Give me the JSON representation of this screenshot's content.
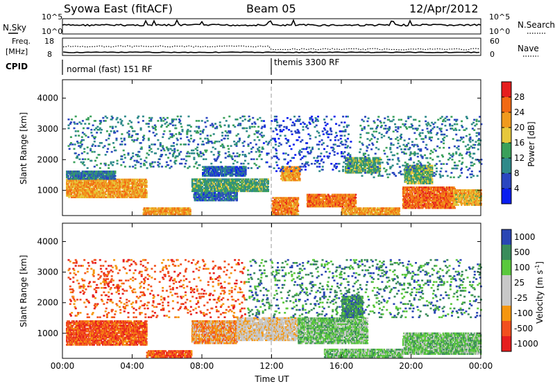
{
  "header": {
    "station": "Syowa East (fitACF)",
    "beam": "Beam 05",
    "date": "12/Apr/2012"
  },
  "noise_panel": {
    "left_label": "N.Sky",
    "right_label": "N.Search",
    "tick_top": "10^5",
    "tick_bottom": "10^0"
  },
  "freq_panel": {
    "left_label": "Freq.",
    "left_unit": "[MHz]",
    "left_tick_top": "18",
    "left_tick_bottom": "8",
    "right_label": "Nave",
    "right_tick_top": "60",
    "right_tick_bottom": "0"
  },
  "cpid_panel": {
    "label": "CPID",
    "segments": [
      {
        "start_hour": 0,
        "text": "normal (fast) 151 RF"
      },
      {
        "start_hour": 12,
        "text": "themis 3300 RF"
      }
    ]
  },
  "colors": {
    "power_scale": [
      "#0a1ef0",
      "#2a46c0",
      "#2f8a8a",
      "#3aa05a",
      "#e6c83c",
      "#f09a1e",
      "#f26a14",
      "#e61e1e"
    ],
    "velocity_scale": [
      "#e61e1e",
      "#f2501e",
      "#f5960f",
      "#c8c8c8",
      "#c8c8c8",
      "#5ac83c",
      "#3a8c5a",
      "#2a46b4"
    ]
  },
  "chart_data": [
    {
      "type": "heatmap",
      "title": "",
      "xlabel": "",
      "ylabel": "Slant Range [km]",
      "xlim": [
        0,
        24
      ],
      "ylim": [
        180,
        4600
      ],
      "yticks": [
        1000,
        2000,
        3000,
        4000
      ],
      "xticks": [
        "00:00",
        "04:00",
        "08:00",
        "12:00",
        "16:00",
        "20:00",
        "00:00"
      ],
      "colorbar": {
        "label": "Power [dB]",
        "range": [
          0,
          32
        ],
        "ticks": [
          "4",
          "8",
          "12",
          "16",
          "20",
          "24",
          "28"
        ]
      },
      "regions": [
        {
          "t0": 0.2,
          "t1": 4.8,
          "r0": 750,
          "r1": 1350,
          "v": 22
        },
        {
          "t0": 0.2,
          "t1": 3.0,
          "r0": 1350,
          "r1": 1600,
          "v": 9
        },
        {
          "t0": 4.6,
          "t1": 7.3,
          "r0": 200,
          "r1": 420,
          "v": 23
        },
        {
          "t0": 7.4,
          "t1": 11.8,
          "r0": 950,
          "r1": 1350,
          "v": 13
        },
        {
          "t0": 7.5,
          "t1": 10.0,
          "r0": 650,
          "r1": 900,
          "v": 8
        },
        {
          "t0": 8.0,
          "t1": 10.5,
          "r0": 1450,
          "r1": 1750,
          "v": 7
        },
        {
          "t0": 12.5,
          "t1": 13.6,
          "r0": 1300,
          "r1": 1750,
          "v": 22
        },
        {
          "t0": 12.0,
          "t1": 13.5,
          "r0": 200,
          "r1": 750,
          "v": 24
        },
        {
          "t0": 14.0,
          "t1": 16.8,
          "r0": 450,
          "r1": 850,
          "v": 25
        },
        {
          "t0": 16.2,
          "t1": 18.2,
          "r0": 1550,
          "r1": 2050,
          "v": 14
        },
        {
          "t0": 16.0,
          "t1": 19.3,
          "r0": 200,
          "r1": 420,
          "v": 22
        },
        {
          "t0": 19.5,
          "t1": 22.5,
          "r0": 400,
          "r1": 1100,
          "v": 26
        },
        {
          "t0": 19.6,
          "t1": 21.2,
          "r0": 1200,
          "r1": 1800,
          "v": 15
        },
        {
          "t0": 22.4,
          "t1": 24.0,
          "r0": 500,
          "r1": 1000,
          "v": 20
        },
        {
          "t0": 0.3,
          "t1": 11.5,
          "r0": 1700,
          "r1": 3400,
          "v": 10,
          "sparse": true
        },
        {
          "t0": 11.5,
          "t1": 16.5,
          "r0": 1600,
          "r1": 3400,
          "v": 6,
          "sparse": true
        },
        {
          "t0": 17.0,
          "t1": 24.0,
          "r0": 1400,
          "r1": 3400,
          "v": 10,
          "sparse": true
        }
      ]
    },
    {
      "type": "heatmap",
      "title": "",
      "xlabel": "Time UT",
      "ylabel": "Slant Range [km]",
      "xlim": [
        0,
        24
      ],
      "ylim": [
        180,
        4600
      ],
      "yticks": [
        1000,
        2000,
        3000,
        4000
      ],
      "xticks": [
        "00:00",
        "04:00",
        "08:00",
        "12:00",
        "16:00",
        "20:00",
        "00:00"
      ],
      "colorbar": {
        "label_main": "Velocity ",
        "label_unit_base": "[m s",
        "label_unit_exp": "-1",
        "label_unit_end": "]",
        "ticks": [
          "-1000",
          "-500",
          "-100",
          "-25",
          "25",
          "100",
          "500",
          "1000"
        ]
      },
      "regions": [
        {
          "t0": 0.2,
          "t1": 4.8,
          "r0": 600,
          "r1": 1400,
          "v": 1
        },
        {
          "t0": 4.8,
          "t1": 7.4,
          "r0": 200,
          "r1": 420,
          "v": 1
        },
        {
          "t0": 7.4,
          "t1": 10.0,
          "r0": 650,
          "r1": 1400,
          "v": 2
        },
        {
          "t0": 10.0,
          "t1": 13.5,
          "r0": 750,
          "r1": 1500,
          "v": 3
        },
        {
          "t0": 13.5,
          "t1": 17.5,
          "r0": 650,
          "r1": 1500,
          "v": 5
        },
        {
          "t0": 15.0,
          "t1": 19.5,
          "r0": 200,
          "r1": 450,
          "v": 5
        },
        {
          "t0": 19.5,
          "t1": 24.0,
          "r0": 300,
          "r1": 1000,
          "v": 5
        },
        {
          "t0": 16.0,
          "t1": 17.2,
          "r0": 1500,
          "r1": 2200,
          "v": 6
        },
        {
          "t0": 0.3,
          "t1": 10.5,
          "r0": 1500,
          "r1": 3400,
          "v": 1,
          "sparse": true
        },
        {
          "t0": 10.5,
          "t1": 24.0,
          "r0": 1500,
          "r1": 3400,
          "v": 6,
          "sparse": true
        }
      ]
    }
  ]
}
